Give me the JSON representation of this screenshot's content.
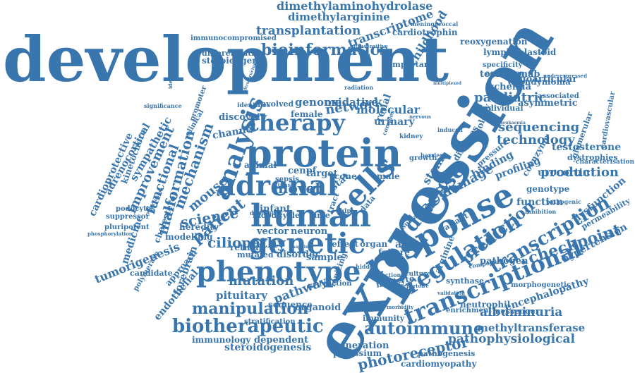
{
  "cloud": {
    "color": "#3a76ae",
    "words": [
      "development",
      "expression",
      "protein",
      "human",
      "response",
      "cells",
      "adrenal",
      "genetic",
      "phenotype",
      "transcriptional",
      "regulation",
      "disease",
      "therapy",
      "analysis",
      "bioinformatics",
      "dimethylaminohydrolase",
      "dimethylarginine",
      "transcriptome",
      "transplantation",
      "biotherapeutic",
      "manipulation",
      "autoimmune",
      "albuminuria",
      "photoreceptor",
      "steroidogenesis",
      "pathophysiological",
      "methyltransferase",
      "transcription",
      "checkpoint",
      "prediction",
      "factor",
      "sequencing",
      "technology",
      "production",
      "leukaemia",
      "paediatric",
      "mutation",
      "pathway",
      "pituitary",
      "ciliopathy",
      "patient",
      "science",
      "mouse",
      "mechanism",
      "malformation",
      "functional",
      "improvement",
      "sympathetic",
      "adrenocortical",
      "cardioprotective",
      "network",
      "genome",
      "oxidative",
      "molecular",
      "urinary",
      "childhood",
      "cardiotrophin",
      "reoxygenation",
      "lymphoblastoid",
      "ischemia",
      "oligoarticular",
      "ependymoma",
      "tocilizumab",
      "testosterone",
      "dystrophies",
      "glomerular",
      "profiling",
      "urocortin",
      "genotype",
      "function",
      "dysfunction",
      "permeability",
      "hypertension",
      "pathogen",
      "encephalopathy",
      "neutrophil",
      "messenger",
      "morphogenetic",
      "damage",
      "binding",
      "stem",
      "diseases",
      "biology",
      "novel",
      "cenpf",
      "target",
      "renal",
      "female",
      "animal",
      "involved",
      "discovery",
      "channel",
      "heredity",
      "modelling",
      "cholesterol",
      "medicine",
      "tumorigenesis",
      "candidate",
      "polymerase",
      "forebrain",
      "endothelial",
      "approach",
      "retinal",
      "vector",
      "neuron",
      "disorder",
      "sample",
      "mutated",
      "sequence",
      "organoid",
      "generation",
      "potassium",
      "immunology",
      "dependent",
      "stratification",
      "immunity",
      "cardiomyopathy",
      "pathogenesis",
      "enrichment",
      "synthase",
      "arginine",
      "myocyte",
      "ionizing",
      "reaction",
      "adma",
      "failure",
      "organ",
      "effect",
      "infant",
      "blood",
      "cycle",
      "time",
      "tract",
      "data",
      "chip",
      "male",
      "cone",
      "stat",
      "sepsis",
      "clinical",
      "steroidogenic",
      "differentiation",
      "immunocompromised",
      "important",
      "meningococcal",
      "ultrasensitive",
      "specificity",
      "activation",
      "individual",
      "asymmetric",
      "associated",
      "underexpressed",
      "cardiovascular",
      "characterisation",
      "pathogenic",
      "inhibition",
      "coenzyme",
      "pressure",
      "variant",
      "composition",
      "podocytes",
      "suppressor",
      "pluripotent",
      "phosphorylation",
      "reperfusion",
      "promoter",
      "significance",
      "kinetochore",
      "identification",
      "radiation",
      "identifies",
      "nervous",
      "growth",
      "kidney",
      "complex",
      "barrier",
      "induced",
      "culture",
      "section",
      "marker",
      "repertoire",
      "validation",
      "morbidity",
      "surface",
      "kinase",
      "deletion",
      "hidden",
      "multiplexed",
      "ultrastructural",
      "mapping"
    ]
  }
}
